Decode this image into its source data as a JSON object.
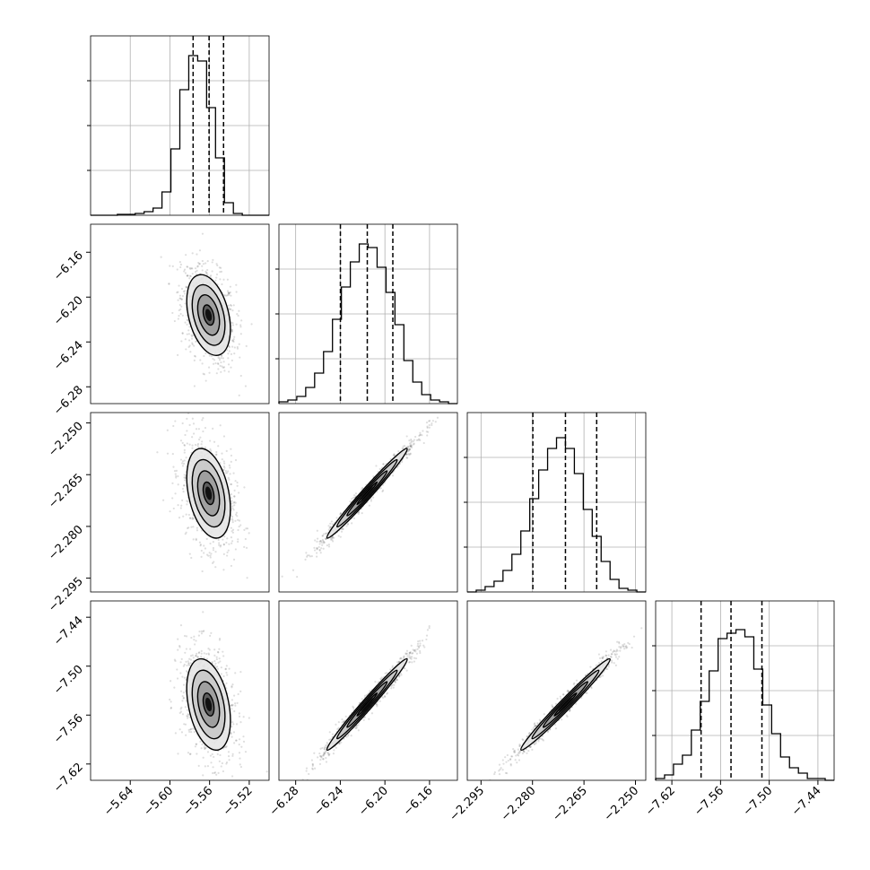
{
  "chart_data": {
    "type": "corner",
    "parameters": [
      {
        "range": [
          -5.68,
          -5.5
        ],
        "hist": [
          0,
          0,
          0,
          0.005,
          0.005,
          0.01,
          0.02,
          0.04,
          0.13,
          0.37,
          0.7,
          0.89,
          0.86,
          0.6,
          0.32,
          0.07,
          0.01,
          0,
          0,
          0
        ],
        "quantiles": [
          -5.5766,
          -5.5605,
          -5.5459
        ],
        "ticks": [
          -5.64,
          -5.6,
          -5.56,
          -5.52
        ],
        "tick_labels": [
          "−5.64",
          "−5.60",
          "−5.56",
          "−5.52"
        ]
      },
      {
        "range": [
          -6.295,
          -6.135
        ],
        "hist": [
          0.01,
          0.02,
          0.04,
          0.09,
          0.17,
          0.29,
          0.47,
          0.65,
          0.79,
          0.89,
          0.87,
          0.76,
          0.62,
          0.44,
          0.24,
          0.12,
          0.05,
          0.02,
          0.01,
          0
        ],
        "quantiles": [
          -6.2399,
          -6.2158,
          -6.1929
        ],
        "ticks": [
          -6.28,
          -6.24,
          -6.2,
          -6.16
        ],
        "tick_labels": [
          "−6.28",
          "−6.24",
          "−6.20",
          "−6.16"
        ]
      },
      {
        "range": [
          -2.299,
          -2.247
        ],
        "hist": [
          0.0,
          0.01,
          0.03,
          0.06,
          0.12,
          0.21,
          0.34,
          0.52,
          0.68,
          0.8,
          0.86,
          0.8,
          0.66,
          0.46,
          0.31,
          0.17,
          0.07,
          0.02,
          0.01,
          0
        ],
        "quantiles": [
          -2.2799,
          -2.2704,
          -2.2613
        ],
        "ticks": [
          -2.295,
          -2.28,
          -2.265,
          -2.25
        ],
        "tick_labels": [
          "−2.295",
          "−2.280",
          "−2.265",
          "−2.250"
        ]
      },
      {
        "range": [
          -7.64,
          -7.42
        ],
        "hist": [
          0.01,
          0.03,
          0.09,
          0.14,
          0.28,
          0.44,
          0.61,
          0.79,
          0.82,
          0.84,
          0.8,
          0.62,
          0.42,
          0.26,
          0.13,
          0.07,
          0.04,
          0.01,
          0.01,
          0
        ],
        "quantiles": [
          -7.584,
          -7.5471,
          -7.509
        ],
        "ticks": [
          -7.62,
          -7.56,
          -7.5,
          -7.44
        ],
        "tick_labels": [
          "−7.62",
          "−7.56",
          "−7.50",
          "−7.44"
        ]
      }
    ],
    "pairs": [
      {
        "x_param": 0,
        "y_param": 1,
        "center": [
          -5.561,
          -6.216
        ],
        "sd": [
          0.011,
          0.018
        ],
        "corr": -0.35
      },
      {
        "x_param": 0,
        "y_param": 2,
        "center": [
          -5.561,
          -2.2704
        ],
        "sd": [
          0.011,
          0.0065
        ],
        "corr": -0.35
      },
      {
        "x_param": 1,
        "y_param": 2,
        "center": [
          -6.216,
          -2.2704
        ],
        "sd": [
          0.018,
          0.0065
        ],
        "corr": 0.985
      },
      {
        "x_param": 0,
        "y_param": 3,
        "center": [
          -5.561,
          -7.547
        ],
        "sd": [
          0.011,
          0.028
        ],
        "corr": -0.35
      },
      {
        "x_param": 1,
        "y_param": 3,
        "center": [
          -6.216,
          -7.547
        ],
        "sd": [
          0.018,
          0.028
        ],
        "corr": 0.985
      },
      {
        "x_param": 2,
        "y_param": 3,
        "center": [
          -2.2704,
          -7.547
        ],
        "sd": [
          0.0065,
          0.028
        ],
        "corr": 0.985
      }
    ],
    "contour_levels_sigma": [
      0.5,
      1.0,
      1.5,
      2.0
    ],
    "grid": true
  }
}
